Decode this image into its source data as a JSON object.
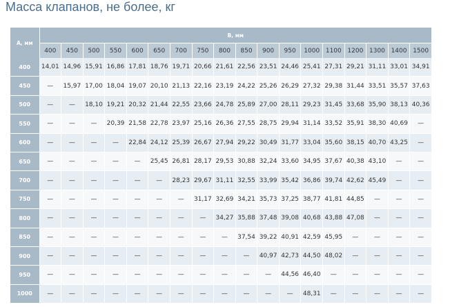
{
  "title": "Масса клапанов, не более, кг",
  "table": {
    "row_header": "А, мм",
    "column_group": "В, мм",
    "columns": [
      "400",
      "450",
      "500",
      "550",
      "600",
      "650",
      "700",
      "750",
      "800",
      "850",
      "900",
      "950",
      "1000",
      "1100",
      "1200",
      "1300",
      "1400",
      "1500"
    ],
    "rows": [
      {
        "label": "400",
        "cells": [
          "14,01",
          "14,96",
          "15,91",
          "16,86",
          "17,81",
          "18,76",
          "19,71",
          "20,66",
          "21,61",
          "22,56",
          "23,51",
          "24,46",
          "25,41",
          "27,31",
          "29,21",
          "31,11",
          "33,01",
          "34,91"
        ]
      },
      {
        "label": "450",
        "cells": [
          "—",
          "15,97",
          "17,00",
          "18,04",
          "19,07",
          "20,10",
          "21,13",
          "22,16",
          "23,19",
          "24,22",
          "25,26",
          "26,29",
          "27,32",
          "29,38",
          "31,44",
          "33,51",
          "35,57",
          "37,63"
        ]
      },
      {
        "label": "500",
        "cells": [
          "—",
          "—",
          "18,10",
          "19,21",
          "20,32",
          "21,44",
          "22,55",
          "23,66",
          "24,78",
          "25,89",
          "27,00",
          "28,11",
          "29,23",
          "31,45",
          "33,68",
          "35,90",
          "38,13",
          "40,36"
        ]
      },
      {
        "label": "550",
        "cells": [
          "—",
          "—",
          "—",
          "20,39",
          "21,58",
          "22,78",
          "23,97",
          "25,16",
          "26,36",
          "27,55",
          "28,75",
          "29,94",
          "31,14",
          "33,52",
          "35,91",
          "38,30",
          "40,69",
          "—"
        ]
      },
      {
        "label": "600",
        "cells": [
          "—",
          "—",
          "—",
          "—",
          "22,84",
          "24,12",
          "25,39",
          "26,67",
          "27,94",
          "29,22",
          "30,49",
          "31,77",
          "33,04",
          "35,60",
          "38,15",
          "40,70",
          "43,25",
          "—"
        ]
      },
      {
        "label": "650",
        "cells": [
          "—",
          "—",
          "—",
          "—",
          "—",
          "25,45",
          "26,81",
          "28,17",
          "29,53",
          "30,88",
          "32,24",
          "33,60",
          "34,95",
          "37,67",
          "40,38",
          "43,10",
          "—",
          "—"
        ]
      },
      {
        "label": "700",
        "cells": [
          "—",
          "—",
          "—",
          "—",
          "—",
          "—",
          "28,23",
          "29,67",
          "31,11",
          "32,55",
          "33,99",
          "35,42",
          "36,86",
          "39,74",
          "42,62",
          "45,49",
          "—",
          "—"
        ]
      },
      {
        "label": "750",
        "cells": [
          "—",
          "—",
          "—",
          "—",
          "—",
          "—",
          "—",
          "31,17",
          "32,69",
          "34,21",
          "35,73",
          "37,25",
          "38,77",
          "41,81",
          "44,85",
          "—",
          "—",
          "—"
        ]
      },
      {
        "label": "800",
        "cells": [
          "—",
          "—",
          "—",
          "—",
          "—",
          "—",
          "—",
          "—",
          "34,27",
          "35,88",
          "37,48",
          "39,08",
          "40,68",
          "43,88",
          "47,08",
          "—",
          "—",
          "—"
        ]
      },
      {
        "label": "850",
        "cells": [
          "—",
          "—",
          "—",
          "—",
          "—",
          "—",
          "—",
          "—",
          "—",
          "37,54",
          "39,22",
          "40,91",
          "42,59",
          "45,95",
          "—",
          "—",
          "—",
          "—"
        ]
      },
      {
        "label": "900",
        "cells": [
          "—",
          "—",
          "—",
          "—",
          "—",
          "—",
          "—",
          "—",
          "—",
          "—",
          "40,97",
          "42,73",
          "44,50",
          "48,02",
          "—",
          "—",
          "—",
          "—"
        ]
      },
      {
        "label": "950",
        "cells": [
          "—",
          "—",
          "—",
          "—",
          "—",
          "—",
          "—",
          "—",
          "—",
          "—",
          "—",
          "44,56",
          "46,40",
          "—",
          "—",
          "—",
          "—",
          "—"
        ]
      },
      {
        "label": "1000",
        "cells": [
          "—",
          "—",
          "—",
          "—",
          "—",
          "—",
          "—",
          "—",
          "—",
          "—",
          "—",
          "—",
          "48,31",
          "—",
          "—",
          "—",
          "—",
          "—"
        ]
      }
    ]
  }
}
